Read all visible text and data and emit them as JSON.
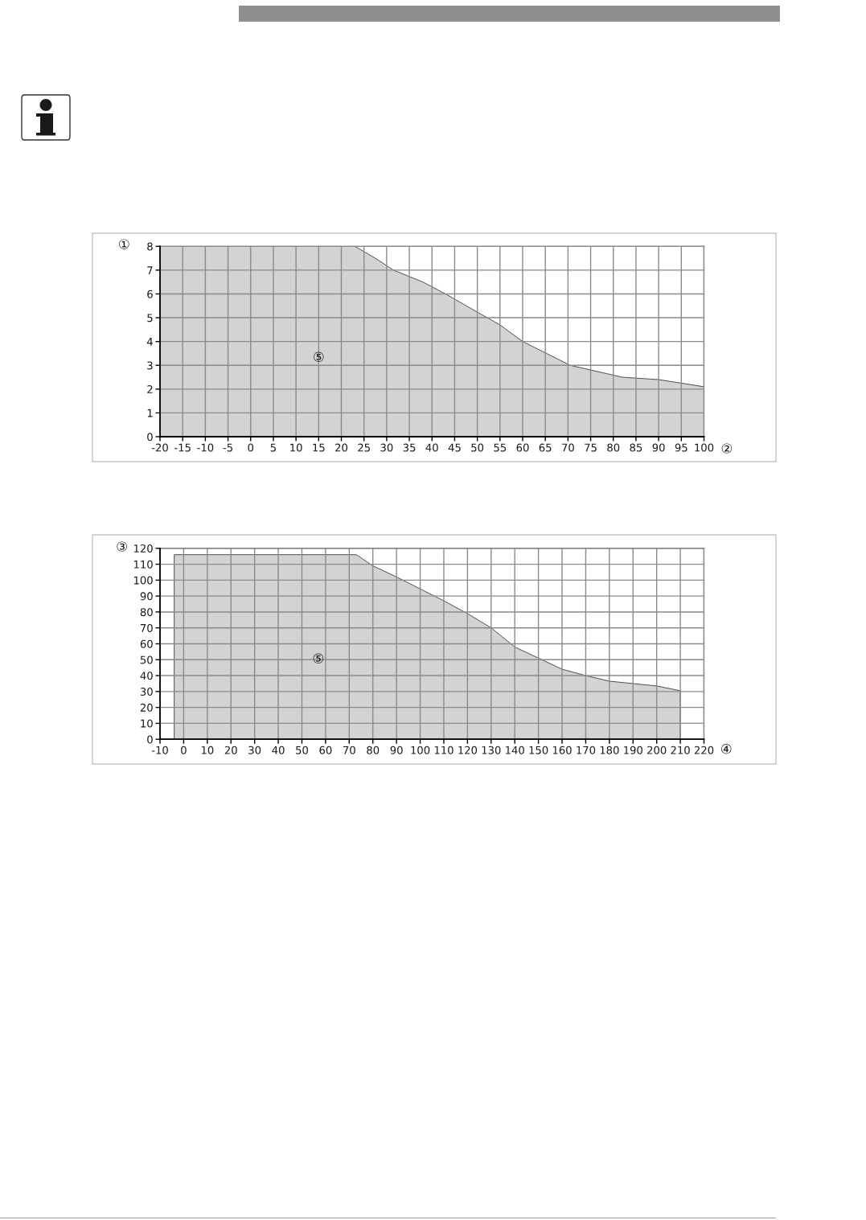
{
  "chart_data": [
    {
      "type": "area",
      "x": [
        -20,
        23,
        27.5,
        31.5,
        38,
        43,
        48.5,
        55,
        60,
        70.5,
        82,
        90,
        100
      ],
      "values": [
        8,
        8,
        7.5,
        7.0,
        6.5,
        6.0,
        5.4,
        4.7,
        4.0,
        3.0,
        2.5,
        2.4,
        2.1
      ],
      "color": "#d3d3d3",
      "xlabel": "②",
      "ylabel": "①",
      "xlim": [
        -20,
        100
      ],
      "ylim": [
        0,
        8
      ],
      "xticks": [
        -20,
        -15,
        -10,
        -5,
        0,
        5,
        10,
        15,
        20,
        25,
        30,
        35,
        40,
        45,
        50,
        55,
        60,
        65,
        70,
        75,
        80,
        85,
        90,
        95,
        100
      ],
      "yticks": [
        0,
        1,
        2,
        3,
        4,
        5,
        6,
        7,
        8
      ],
      "grid": true,
      "annotations": [
        "⑤"
      ]
    },
    {
      "type": "area",
      "x": [
        -4,
        73,
        80,
        90,
        100,
        110,
        120,
        130,
        140,
        150,
        160,
        170,
        180,
        190,
        200,
        210
      ],
      "values": [
        116,
        116,
        109,
        102,
        94.5,
        87,
        79,
        70,
        58,
        51,
        44,
        40,
        36.5,
        35,
        33.5,
        30.5
      ],
      "color": "#d3d3d3",
      "xlabel": "④",
      "ylabel": "③",
      "xlim": [
        -10,
        220
      ],
      "ylim": [
        0,
        120
      ],
      "xticks": [
        -10,
        0,
        10,
        20,
        30,
        40,
        50,
        60,
        70,
        80,
        90,
        100,
        110,
        120,
        130,
        140,
        150,
        160,
        170,
        180,
        190,
        200,
        210,
        220
      ],
      "yticks": [
        0,
        10,
        20,
        30,
        40,
        50,
        60,
        70,
        80,
        90,
        100,
        110,
        120
      ],
      "grid": true,
      "annotations": [
        "⑤"
      ]
    }
  ]
}
